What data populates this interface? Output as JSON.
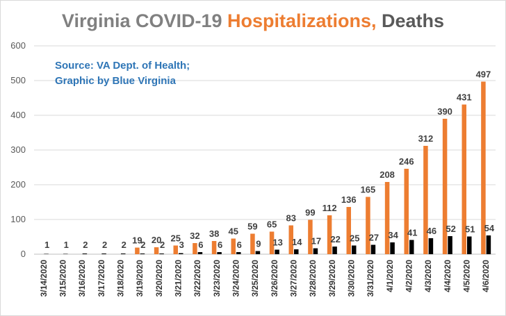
{
  "chart_data": {
    "type": "bar",
    "title_parts": [
      {
        "text": "Virginia COVID-19 ",
        "color": "#808080"
      },
      {
        "text": "Hospitalizations, ",
        "color": "#ED7D31"
      },
      {
        "text": "Deaths",
        "color": "#595959"
      }
    ],
    "source_lines": [
      "Source: VA Dept. of Health;",
      "Graphic by Blue Virginia"
    ],
    "source_color": "#2E75B6",
    "categories": [
      "3/14/2020",
      "3/15/2020",
      "3/16/2020",
      "3/17/2020",
      "3/18/2020",
      "3/19/2020",
      "3/20/2020",
      "3/21/2020",
      "3/22/2020",
      "3/23/2020",
      "3/24/2020",
      "3/25/2020",
      "3/26/2020",
      "3/27/2020",
      "3/28/2020",
      "3/29/2020",
      "3/30/2020",
      "3/31/2020",
      "4/1/2020",
      "4/2/2020",
      "4/3/2020",
      "4/4/2020",
      "4/5/2020",
      "4/6/2020"
    ],
    "series": [
      {
        "color": "#ED7D31",
        "values": [
          null,
          null,
          null,
          null,
          null,
          19,
          20,
          25,
          32,
          38,
          45,
          59,
          65,
          83,
          99,
          112,
          136,
          165,
          208,
          246,
          312,
          390,
          431,
          497
        ]
      },
      {
        "color": "#000000",
        "values": [
          1,
          1,
          2,
          2,
          2,
          2,
          2,
          3,
          6,
          6,
          6,
          9,
          13,
          14,
          17,
          22,
          25,
          27,
          34,
          41,
          46,
          52,
          51,
          54
        ]
      }
    ],
    "ylim": [
      0,
      600
    ],
    "yticks": [
      0,
      100,
      200,
      300,
      400,
      500,
      600
    ],
    "grid": true
  }
}
